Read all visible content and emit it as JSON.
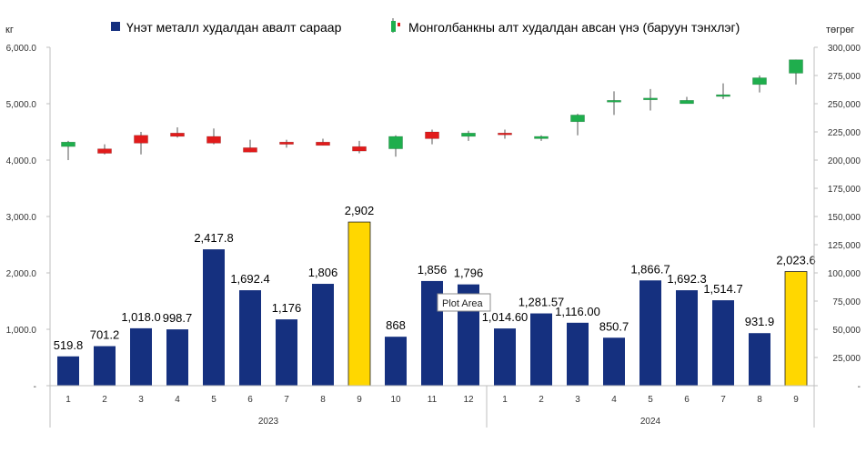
{
  "chart_data": {
    "type": "bar",
    "y_left_unit": "кг",
    "y_right_unit": "төгрөг",
    "y_left_ticks": [
      "6,000.0",
      "5,000.0",
      "4,000.0",
      "3,000.0",
      "2,000.0",
      "1,000.0",
      "-"
    ],
    "y_right_ticks": [
      "300,000",
      "275,000",
      "250,000",
      "225,000",
      "200,000",
      "175,000",
      "150,000",
      "125,000",
      "100,000",
      "75,000",
      "50,000",
      "25,000",
      "-"
    ],
    "ylim_left": [
      0,
      6000
    ],
    "ylim_right": [
      0,
      300000
    ],
    "years": [
      "2023",
      "2024"
    ],
    "categories": [
      "1",
      "2",
      "3",
      "4",
      "5",
      "6",
      "7",
      "8",
      "9",
      "10",
      "11",
      "12",
      "1",
      "2",
      "3",
      "4",
      "5",
      "6",
      "7",
      "8",
      "9"
    ],
    "series": [
      {
        "name": "Үнэт металл худалдан авалт сараар",
        "kind": "bar",
        "axis": "left",
        "values": [
          519.8,
          701.2,
          1018.0,
          998.7,
          2417.8,
          1692.4,
          1176,
          1806,
          2902,
          868,
          1856,
          1796,
          1014.6,
          1281.57,
          1116.0,
          850.7,
          1866.7,
          1692.3,
          1514.7,
          931.9,
          2023.6
        ],
        "labels": [
          "519.8",
          "701.2",
          "1,018.0",
          "998.7",
          "2,417.8",
          "1,692.4",
          "1,176",
          "1,806",
          "2,902",
          "868",
          "1,856",
          "1,796",
          "1,014.60",
          "1,281.57",
          "1,116.00",
          "850.7",
          "1,866.7",
          "1,692.3",
          "1,514.7",
          "931.9",
          "2,023.6"
        ],
        "highlight_indices": [
          8,
          20
        ]
      },
      {
        "name": "Монголбанкны алт худалдан авсан үнэ (баруун тэнхлэг)",
        "kind": "candlestick",
        "axis": "right",
        "open": [
          212000,
          210000,
          222000,
          224000,
          221000,
          211000,
          216000,
          216000,
          212000,
          210000,
          225000,
          221000,
          224000,
          219000,
          234000,
          252000,
          254000,
          250000,
          257000,
          267000,
          277000
        ],
        "close": [
          216000,
          206000,
          215000,
          221000,
          215000,
          207000,
          214000,
          213000,
          208000,
          221000,
          219000,
          224000,
          223000,
          221000,
          240000,
          253000,
          255000,
          253000,
          258000,
          273000,
          289000
        ],
        "high": [
          217000,
          214000,
          225000,
          229000,
          228000,
          218000,
          218000,
          219000,
          217000,
          222000,
          227000,
          226000,
          227000,
          222000,
          241000,
          261000,
          263000,
          256000,
          268000,
          275000,
          289000
        ],
        "low": [
          200000,
          205000,
          205000,
          220000,
          214000,
          207000,
          211000,
          213000,
          206000,
          203000,
          214000,
          217000,
          219000,
          217000,
          222000,
          240000,
          244000,
          250000,
          254000,
          260000,
          267000
        ]
      }
    ],
    "colors": {
      "bar": "#15307f",
      "bar_highlight": "#ffd700",
      "candle_up": "#1fae4d",
      "candle_down": "#e11b1b",
      "wick": "#555555",
      "grid": "#d9d9d9",
      "axis": "#bfbfbf"
    },
    "legend_position": "top",
    "grid": true,
    "tooltip": "Plot Area"
  }
}
